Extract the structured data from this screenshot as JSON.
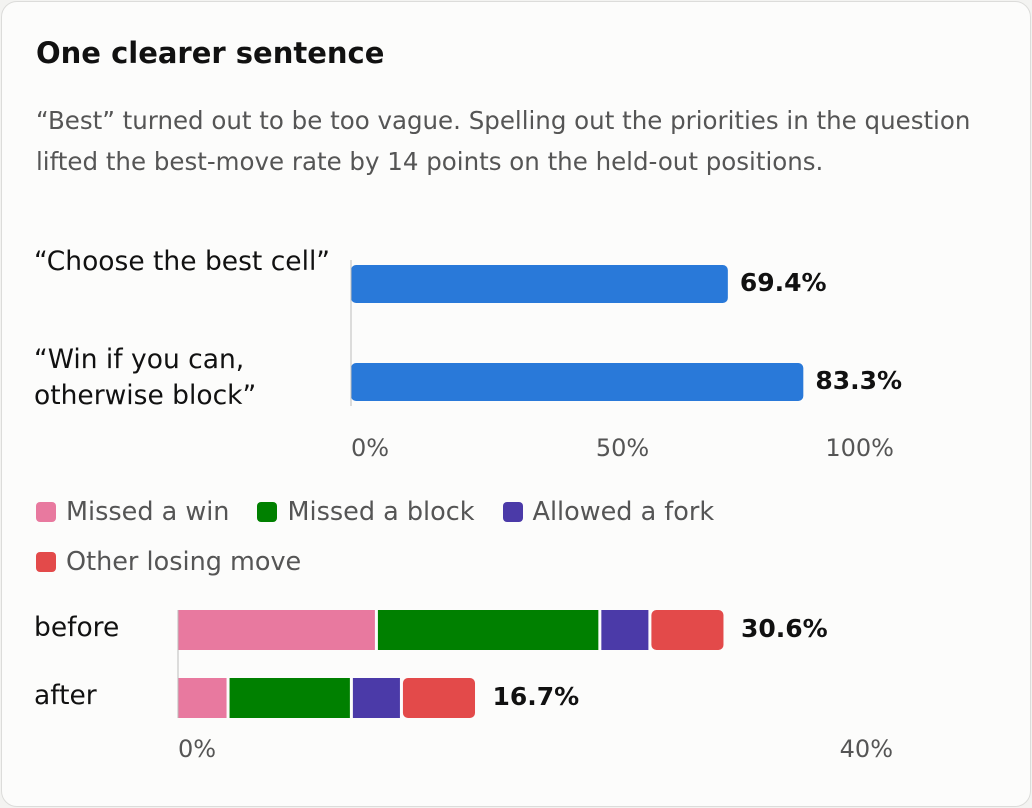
{
  "card": {
    "title": "One clearer sentence",
    "description": "“Best” turned out to be too vague. Spelling out the priorities in the question lifted the best-move rate by 14 points on the held-out positions."
  },
  "chart_data": [
    {
      "type": "bar",
      "orientation": "horizontal",
      "categories": [
        "“Choose the best cell”",
        "“Win if you can, otherwise block”"
      ],
      "values": [
        69.4,
        83.3
      ],
      "value_labels": [
        "69.4%",
        "83.3%"
      ],
      "color": "#2979d9",
      "xlim": [
        0,
        100
      ],
      "xticks": [
        {
          "value": 0,
          "label": "0%"
        },
        {
          "value": 50,
          "label": "50%"
        },
        {
          "value": 100,
          "label": "100%"
        }
      ]
    },
    {
      "type": "stacked_bar",
      "orientation": "horizontal",
      "categories": [
        "before",
        "after"
      ],
      "series": [
        {
          "name": "Missed a win",
          "color": "#e8799f",
          "values": [
            11.1,
            2.8
          ]
        },
        {
          "name": "Missed a block",
          "color": "#008000",
          "values": [
            12.5,
            6.9
          ]
        },
        {
          "name": "Allowed a fork",
          "color": "#4b3aa8",
          "values": [
            2.8,
            2.8
          ]
        },
        {
          "name": "Other losing move",
          "color": "#e34a4a",
          "values": [
            4.2,
            4.2
          ]
        }
      ],
      "totals": [
        30.6,
        16.7
      ],
      "total_labels": [
        "30.6%",
        "16.7%"
      ],
      "xlim": [
        0,
        40
      ],
      "xticks": [
        {
          "value": 0,
          "label": "0%"
        },
        {
          "value": 40,
          "label": "40%"
        }
      ],
      "legend": "top"
    }
  ]
}
